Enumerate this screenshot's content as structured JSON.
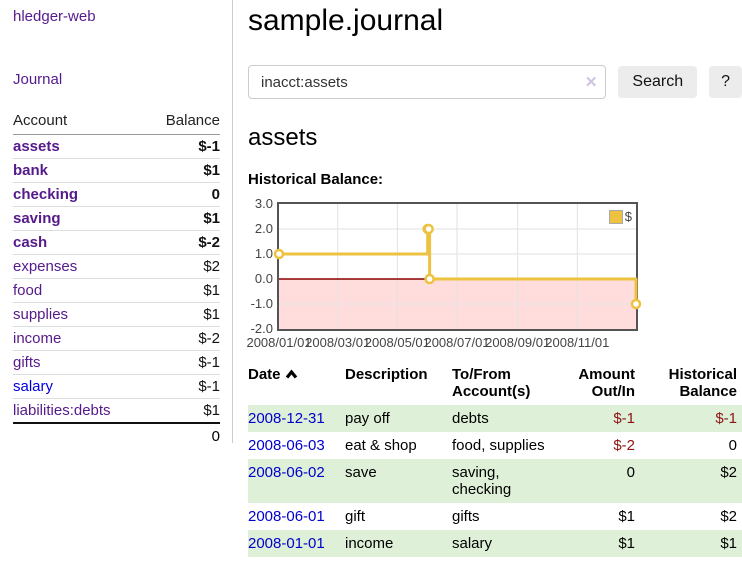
{
  "app": {
    "brand": "hledger-web",
    "nav_journal": "Journal"
  },
  "sidebar": {
    "accounts": {
      "header": {
        "account": "Account",
        "balance": "Balance"
      },
      "rows": [
        {
          "name": "assets",
          "balance": "$-1"
        },
        {
          "name": "bank",
          "balance": "$1"
        },
        {
          "name": "checking",
          "balance": "0"
        },
        {
          "name": "saving",
          "balance": "$1"
        },
        {
          "name": "cash",
          "balance": "$-2"
        },
        {
          "name": "expenses",
          "balance": "$2"
        },
        {
          "name": "food",
          "balance": "$1"
        },
        {
          "name": "supplies",
          "balance": "$1"
        },
        {
          "name": "income",
          "balance": "$-2"
        },
        {
          "name": "gifts",
          "balance": "$-1"
        },
        {
          "name": "salary",
          "balance": "$-1"
        },
        {
          "name": "liabilities:debts",
          "balance": "$1"
        }
      ],
      "total": "0"
    }
  },
  "header": {
    "title": "sample.journal"
  },
  "search": {
    "value": "inacct:assets",
    "button": "Search",
    "help": "?",
    "clear_icon": "✕"
  },
  "page": {
    "heading": "assets"
  },
  "chart_data": {
    "type": "line",
    "step": true,
    "title": "Historical Balance:",
    "series": [
      {
        "name": "$",
        "color": "#edc240",
        "points": [
          [
            "2008-01-01",
            1
          ],
          [
            "2008-06-01",
            2
          ],
          [
            "2008-06-02",
            2
          ],
          [
            "2008-06-03",
            0
          ],
          [
            "2008-12-31",
            -1
          ]
        ]
      }
    ],
    "xlim": [
      "2008-01-01",
      "2008-12-31"
    ],
    "ylim": [
      -2,
      3
    ],
    "x_ticks": [
      "2008/01/01",
      "2008/03/01",
      "2008/05/01",
      "2008/07/01",
      "2008/09/01",
      "2008/11/01"
    ],
    "y_ticks": [
      "3.0",
      "2.0",
      "1.0",
      "0.0",
      "-1.0",
      "-2.0"
    ],
    "legend_position": "top-right",
    "grid": true,
    "negative_bg": "#ffdddd",
    "zero_line_color": "#8b0000",
    "border_color": "#545454"
  },
  "register": {
    "headers": {
      "date": "Date",
      "description": "Description",
      "accounts": "To/From Account(s)",
      "amount": "Amount Out/In",
      "balance": "Historical Balance"
    },
    "rows": [
      {
        "date": "2008-12-31",
        "description": "pay off",
        "accounts": "debts",
        "amount": "$-1",
        "balance": "$-1"
      },
      {
        "date": "2008-06-03",
        "description": "eat & shop",
        "accounts": "food, supplies",
        "amount": "$-2",
        "balance": "0"
      },
      {
        "date": "2008-06-02",
        "description": "save",
        "accounts": "saving, checking",
        "amount": "0",
        "balance": "$2"
      },
      {
        "date": "2008-06-01",
        "description": "gift",
        "accounts": "gifts",
        "amount": "$1",
        "balance": "$2"
      },
      {
        "date": "2008-01-01",
        "description": "income",
        "accounts": "salary",
        "amount": "$1",
        "balance": "$1"
      }
    ]
  },
  "colors": {
    "purple_link": "#551a8b",
    "blue_link": "#0000cc",
    "negative": "#8e1414",
    "negative_light": "#b26565",
    "row_stripe_green": "#dff0d8",
    "chart_series": "#edc240",
    "chart_negative_bg": "#ffdddd",
    "chart_zero_line": "#8b0000"
  }
}
